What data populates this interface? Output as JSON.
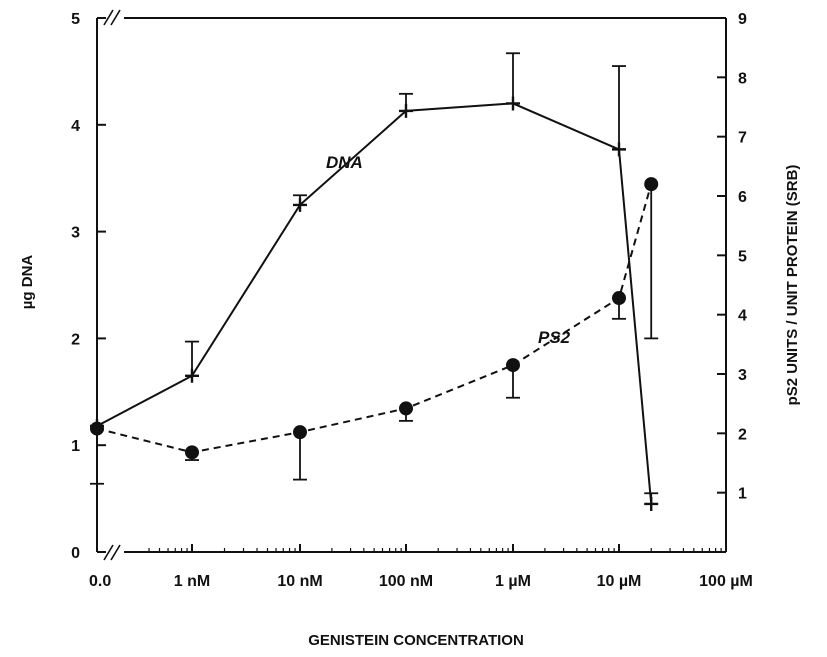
{
  "chart_data": {
    "type": "line",
    "xlabel": "GENISTEIN CONCENTRATION",
    "ylabel_left": "µg DNA",
    "ylabel_right": "pS2 UNITS / UNIT PROTEIN (SRB)",
    "x_tick_labels": [
      "0.0",
      "1 nM",
      "10 nM",
      "100 nM",
      "1 µM",
      "10 µM",
      "100 µM"
    ],
    "y_left_ticks": [
      "0",
      "1",
      "2",
      "3",
      "4",
      "5"
    ],
    "y_right_ticks": [
      "1",
      "2",
      "3",
      "4",
      "5",
      "6",
      "7",
      "8",
      "9"
    ],
    "ylim_left": [
      0,
      5
    ],
    "ylim_right": [
      0,
      9
    ],
    "series": [
      {
        "name": "DNA",
        "axis": "left",
        "line_style": "solid",
        "marker": "plus",
        "points": [
          {
            "x": "0.0",
            "y": 1.18,
            "err": null
          },
          {
            "x": "1 nM",
            "y": 1.65,
            "err": 0.32
          },
          {
            "x": "10 nM",
            "y": 3.25,
            "err": 0.09
          },
          {
            "x": "100 nM",
            "y": 4.13,
            "err": 0.16
          },
          {
            "x": "1 µM",
            "y": 4.2,
            "err": 0.47
          },
          {
            "x": "10 µM",
            "y": 3.77,
            "err": 0.78
          },
          {
            "x": "20 µM",
            "y": 0.45,
            "err": 0.1
          }
        ]
      },
      {
        "name": "PS2",
        "axis": "right",
        "line_style": "dashed",
        "marker": "circle",
        "points": [
          {
            "x": "0.0",
            "y": 2.08,
            "err": 0.93
          },
          {
            "x": "1 nM",
            "y": 1.68,
            "err": 0.13
          },
          {
            "x": "10 nM",
            "y": 2.02,
            "err": 0.8
          },
          {
            "x": "100 nM",
            "y": 2.42,
            "err": 0.21
          },
          {
            "x": "1 µM",
            "y": 3.15,
            "err": 0.55
          },
          {
            "x": "10 µM",
            "y": 4.28,
            "err": 0.35
          },
          {
            "x": "20 µM",
            "y": 6.2,
            "err": 2.6
          }
        ]
      }
    ]
  }
}
